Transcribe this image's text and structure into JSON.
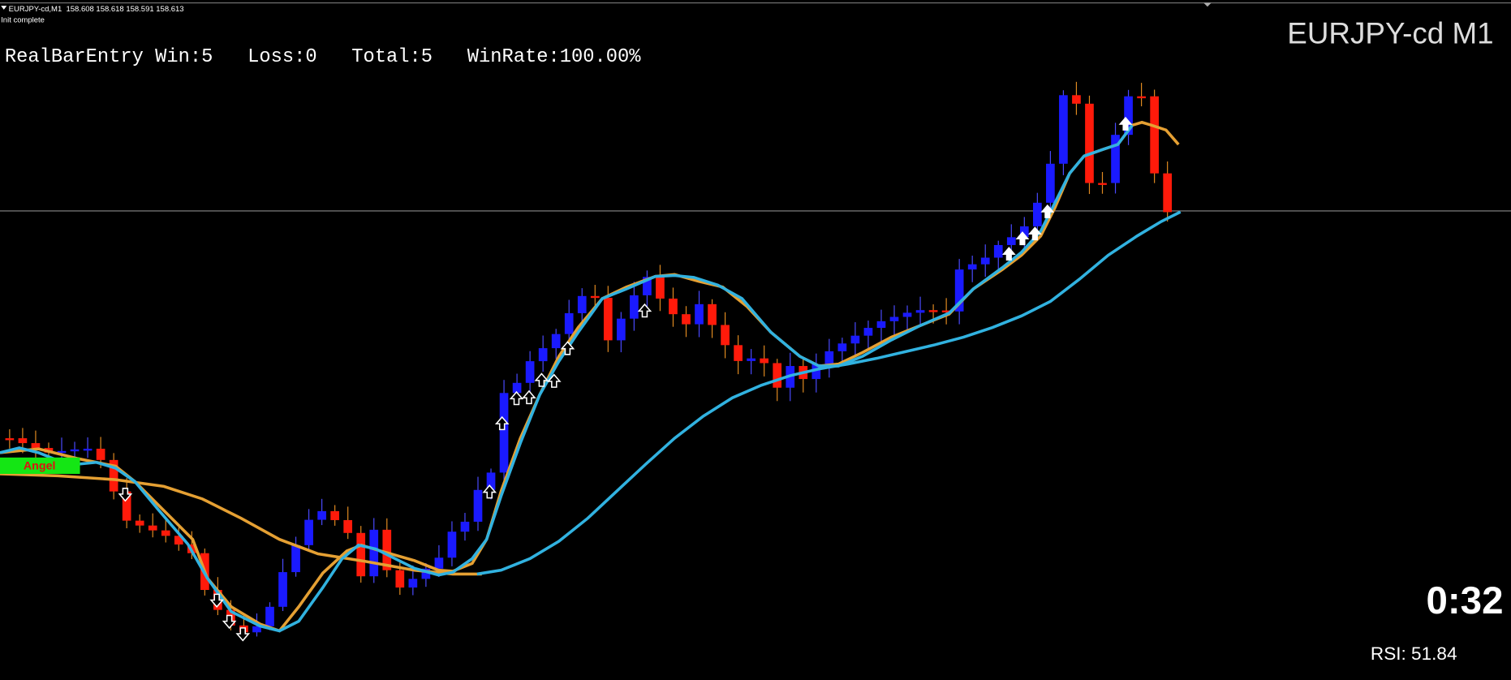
{
  "header": {
    "symbol_info": "EURJPY-cd,M1  158.608 158.618 158.591 158.613",
    "status": "Init complete"
  },
  "stats": "RealBarEntry Win:5   Loss:0   Total:5   WinRate:100.00%",
  "chart_title": "EURJPY-cd M1",
  "signal_label": "Angel",
  "timer": "0:32",
  "rsi": "RSI: 51.84"
}
